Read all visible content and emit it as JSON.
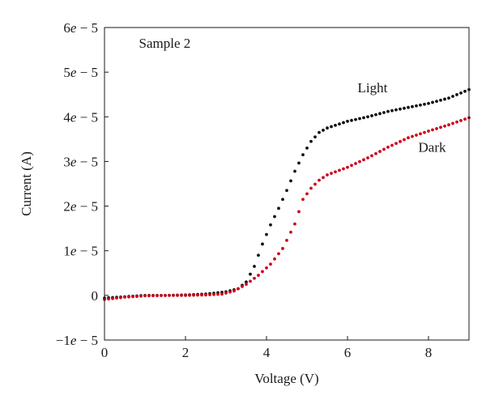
{
  "chart_data": {
    "type": "scatter",
    "xlabel": "Voltage (V)",
    "ylabel": "Current (A)",
    "xlim": [
      0,
      9
    ],
    "ylim": [
      -1e-05,
      6e-05
    ],
    "x_ticks": [
      0,
      2,
      4,
      6,
      8
    ],
    "x_tick_labels": [
      "0",
      "2",
      "4",
      "6",
      "8"
    ],
    "y_ticks": [
      -1e-05,
      0,
      1e-05,
      2e-05,
      3e-05,
      4e-05,
      5e-05,
      6e-05
    ],
    "y_tick_labels": [
      {
        "coef": "−1",
        "exp": "− 5"
      },
      {
        "coef": "0",
        "exp": ""
      },
      {
        "coef": "1",
        "exp": "− 5"
      },
      {
        "coef": "2",
        "exp": "− 5"
      },
      {
        "coef": "3",
        "exp": "− 5"
      },
      {
        "coef": "4",
        "exp": "− 5"
      },
      {
        "coef": "5",
        "exp": "− 5"
      },
      {
        "coef": "6",
        "exp": "− 5"
      }
    ],
    "annotations": [
      {
        "text": "Sample 2",
        "x": 0.85,
        "y": 5.55e-05
      },
      {
        "text": "Light",
        "x": 6.25,
        "y": 4.55e-05
      },
      {
        "text": "Dark",
        "x": 7.75,
        "y": 3.22e-05
      }
    ],
    "grid": false,
    "series": [
      {
        "name": "Light",
        "color": "#111111",
        "points": [
          [
            0.0,
            -6e-07
          ],
          [
            0.5,
            -3e-07
          ],
          [
            1.0,
            0.0
          ],
          [
            1.5,
            0.0
          ],
          [
            2.0,
            1e-07
          ],
          [
            2.5,
            3e-07
          ],
          [
            3.0,
            8e-07
          ],
          [
            3.3,
            1.5e-06
          ],
          [
            3.5,
            3e-06
          ],
          [
            3.7,
            6.5e-06
          ],
          [
            3.9,
            1.15e-05
          ],
          [
            4.1,
            1.58e-05
          ],
          [
            4.3,
            1.95e-05
          ],
          [
            4.5,
            2.35e-05
          ],
          [
            4.7,
            2.78e-05
          ],
          [
            4.9,
            3.15e-05
          ],
          [
            5.1,
            3.45e-05
          ],
          [
            5.3,
            3.65e-05
          ],
          [
            5.5,
            3.75e-05
          ],
          [
            6.0,
            3.9e-05
          ],
          [
            6.5,
            4e-05
          ],
          [
            7.0,
            4.12e-05
          ],
          [
            7.5,
            4.21e-05
          ],
          [
            8.0,
            4.3e-05
          ],
          [
            8.5,
            4.42e-05
          ],
          [
            9.0,
            4.61e-05
          ]
        ]
      },
      {
        "name": "Dark",
        "color": "#d0021b",
        "points": [
          [
            0.0,
            -9e-07
          ],
          [
            0.5,
            -4e-07
          ],
          [
            1.0,
            -1e-07
          ],
          [
            1.5,
            0.0
          ],
          [
            2.0,
            0.0
          ],
          [
            2.5,
            1e-07
          ],
          [
            2.9,
            3e-07
          ],
          [
            3.2,
            1e-06
          ],
          [
            3.5,
            2.5e-06
          ],
          [
            3.8,
            4.5e-06
          ],
          [
            4.1,
            7e-06
          ],
          [
            4.4,
            1.05e-05
          ],
          [
            4.7,
            1.6e-05
          ],
          [
            4.9,
            2.15e-05
          ],
          [
            5.1,
            2.4e-05
          ],
          [
            5.3,
            2.58e-05
          ],
          [
            5.5,
            2.7e-05
          ],
          [
            6.0,
            2.87e-05
          ],
          [
            6.5,
            3.08e-05
          ],
          [
            7.0,
            3.32e-05
          ],
          [
            7.5,
            3.53e-05
          ],
          [
            8.0,
            3.68e-05
          ],
          [
            8.5,
            3.82e-05
          ],
          [
            9.0,
            3.98e-05
          ]
        ]
      }
    ]
  }
}
